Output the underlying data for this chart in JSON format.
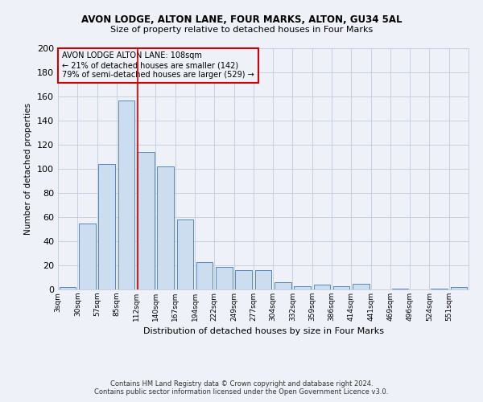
{
  "title1": "AVON LODGE, ALTON LANE, FOUR MARKS, ALTON, GU34 5AL",
  "title2": "Size of property relative to detached houses in Four Marks",
  "xlabel": "Distribution of detached houses by size in Four Marks",
  "ylabel": "Number of detached properties",
  "annotation_line1": "AVON LODGE ALTON LANE: 108sqm",
  "annotation_line2": "← 21% of detached houses are smaller (142)",
  "annotation_line3": "79% of semi-detached houses are larger (529) →",
  "footer1": "Contains HM Land Registry data © Crown copyright and database right 2024.",
  "footer2": "Contains public sector information licensed under the Open Government Licence v3.0.",
  "bar_color": "#ccddf0",
  "bar_edge_color": "#5588bb",
  "grid_color": "#c8d0e0",
  "vline_color": "#cc0000",
  "annotation_box_color": "#cc0000",
  "background_color": "#eef2f8",
  "categories": [
    "3sqm",
    "30sqm",
    "57sqm",
    "85sqm",
    "112sqm",
    "140sqm",
    "167sqm",
    "194sqm",
    "222sqm",
    "249sqm",
    "277sqm",
    "304sqm",
    "332sqm",
    "359sqm",
    "386sqm",
    "414sqm",
    "441sqm",
    "469sqm",
    "496sqm",
    "524sqm",
    "551sqm"
  ],
  "values": [
    2,
    55,
    104,
    157,
    114,
    102,
    58,
    23,
    19,
    16,
    16,
    6,
    3,
    4,
    3,
    5,
    0,
    1,
    0,
    1,
    2
  ],
  "vline_position": 4,
  "ylim": [
    0,
    200
  ],
  "yticks": [
    0,
    20,
    40,
    60,
    80,
    100,
    120,
    140,
    160,
    180,
    200
  ]
}
